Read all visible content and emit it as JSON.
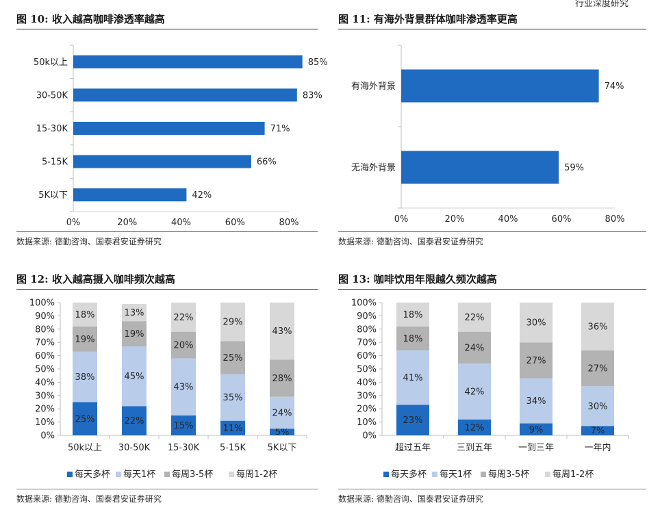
{
  "page": {
    "header_tag": "行业深度研究"
  },
  "charts": [
    {
      "title": "图 10:  收入越高咖啡渗透率越高",
      "source": "数据来源:  德勤咨询、国泰君安证券研究"
    },
    {
      "title": "图 11:  有海外背景群体咖啡渗透率更高",
      "source": "数据来源:  德勤咨询、国泰君安证券研究"
    },
    {
      "title": "图 12:  收入越高摄入咖啡频次越高",
      "source": "数据来源:  德勤咨询、国泰君安证券研究"
    },
    {
      "title": "图 13:  咖啡饮用年限越久频次越高",
      "source": "数据来源:  德勤咨询、国泰君安证券研究"
    }
  ],
  "chart_data": [
    {
      "type": "bar",
      "orientation": "horizontal",
      "categories": [
        "50k以上",
        "30-50K",
        "15-30K",
        "5-15K",
        "5K以下"
      ],
      "values": [
        85,
        83,
        71,
        66,
        42
      ],
      "value_labels": [
        "85%",
        "83%",
        "71%",
        "66%",
        "42%"
      ],
      "xlim": [
        0,
        85
      ],
      "xticks": [
        "0%",
        "20%",
        "40%",
        "60%",
        "80%"
      ],
      "grid": false,
      "color": "#1f6bc1"
    },
    {
      "type": "bar",
      "orientation": "horizontal",
      "categories": [
        "有海外背景",
        "无海外背景"
      ],
      "values": [
        74,
        59
      ],
      "value_labels": [
        "74%",
        "59%"
      ],
      "xlim": [
        0,
        80
      ],
      "xticks": [
        "0%",
        "20%",
        "40%",
        "60%",
        "80%"
      ],
      "grid": false,
      "color": "#1f6bc1"
    },
    {
      "type": "bar",
      "stacked": true,
      "categories": [
        "50k以上",
        "30-50K",
        "15-30K",
        "5-15K",
        "5K以下"
      ],
      "series": [
        {
          "name": "每天多杯",
          "values": [
            25,
            22,
            15,
            11,
            5
          ],
          "labels": [
            "25%",
            "22%",
            "15%",
            "11%",
            "5%"
          ],
          "color": "#1f6bc1"
        },
        {
          "name": "每天1杯",
          "values": [
            38,
            45,
            43,
            35,
            24
          ],
          "labels": [
            "38%",
            "45%",
            "43%",
            "35%",
            "24%"
          ],
          "color": "#b9cdea"
        },
        {
          "name": "每周3-5杯",
          "values": [
            19,
            19,
            20,
            25,
            28
          ],
          "labels": [
            "19%",
            "19%",
            "20%",
            "25%",
            "28%"
          ],
          "color": "#b3b3b3"
        },
        {
          "name": "每周1-2杯",
          "values": [
            18,
            13,
            22,
            29,
            43
          ],
          "labels": [
            "18%",
            "13%",
            "22%",
            "29%",
            "43%"
          ],
          "color": "#d8d8d8"
        }
      ],
      "ylim": [
        0,
        100
      ],
      "yticks": [
        "0%",
        "10%",
        "20%",
        "30%",
        "40%",
        "50%",
        "60%",
        "70%",
        "80%",
        "90%",
        "100%"
      ],
      "legend": "bottom",
      "grid": false
    },
    {
      "type": "bar",
      "stacked": true,
      "categories": [
        "超过五年",
        "三到五年",
        "一到三年",
        "一年内"
      ],
      "series": [
        {
          "name": "每天多杯",
          "values": [
            23,
            12,
            9,
            7
          ],
          "labels": [
            "23%",
            "12%",
            "9%",
            "7%"
          ],
          "color": "#1f6bc1"
        },
        {
          "name": "每天1杯",
          "values": [
            41,
            42,
            34,
            30
          ],
          "labels": [
            "41%",
            "42%",
            "34%",
            "30%"
          ],
          "color": "#b9cdea"
        },
        {
          "name": "每周3-5杯",
          "values": [
            18,
            24,
            27,
            27
          ],
          "labels": [
            "18%",
            "24%",
            "27%",
            "27%"
          ],
          "color": "#b3b3b3"
        },
        {
          "name": "每周1-2杯",
          "values": [
            18,
            22,
            30,
            36
          ],
          "labels": [
            "18%",
            "22%",
            "30%",
            "36%"
          ],
          "color": "#d8d8d8"
        }
      ],
      "ylim": [
        0,
        100
      ],
      "yticks": [
        "0%",
        "10%",
        "20%",
        "30%",
        "40%",
        "50%",
        "60%",
        "70%",
        "80%",
        "90%",
        "100%"
      ],
      "legend": "bottom",
      "grid": false
    }
  ]
}
